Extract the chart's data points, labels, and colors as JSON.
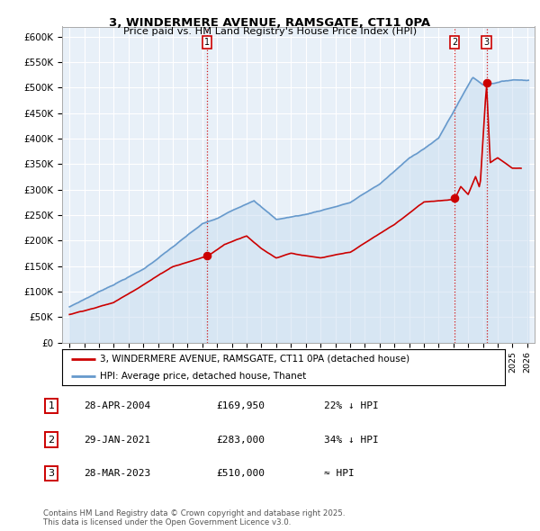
{
  "title": "3, WINDERMERE AVENUE, RAMSGATE, CT11 0PA",
  "subtitle": "Price paid vs. HM Land Registry's House Price Index (HPI)",
  "legend_label_red": "3, WINDERMERE AVENUE, RAMSGATE, CT11 0PA (detached house)",
  "legend_label_blue": "HPI: Average price, detached house, Thanet",
  "footer": "Contains HM Land Registry data © Crown copyright and database right 2025.\nThis data is licensed under the Open Government Licence v3.0.",
  "transactions": [
    {
      "num": 1,
      "date": "28-APR-2004",
      "price": 169950,
      "hpi_text": "22% ↓ HPI",
      "year": 2004.32
    },
    {
      "num": 2,
      "date": "29-JAN-2021",
      "price": 283000,
      "hpi_text": "34% ↓ HPI",
      "year": 2021.08
    },
    {
      "num": 3,
      "date": "28-MAR-2023",
      "price": 510000,
      "hpi_text": "≈ HPI",
      "year": 2023.24
    }
  ],
  "ylim": [
    0,
    620000
  ],
  "xlim": [
    1994.5,
    2026.5
  ],
  "yticks": [
    0,
    50000,
    100000,
    150000,
    200000,
    250000,
    300000,
    350000,
    400000,
    450000,
    500000,
    550000,
    600000
  ],
  "ytick_labels": [
    "£0",
    "£50K",
    "£100K",
    "£150K",
    "£200K",
    "£250K",
    "£300K",
    "£350K",
    "£400K",
    "£450K",
    "£500K",
    "£550K",
    "£600K"
  ],
  "red_color": "#cc0000",
  "blue_color": "#6699cc",
  "blue_fill": "#ddeeff",
  "background_color": "#ffffff",
  "grid_color": "#cccccc"
}
